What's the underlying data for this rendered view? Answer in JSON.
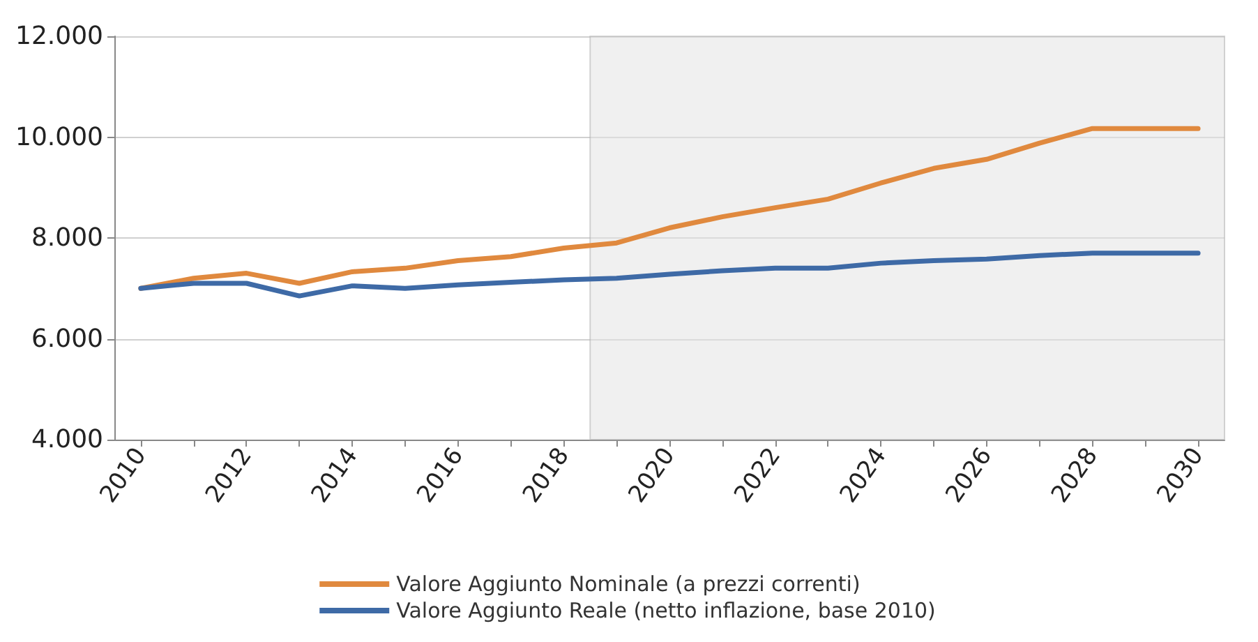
{
  "chart_data": {
    "type": "line",
    "x": [
      2010,
      2011,
      2012,
      2013,
      2014,
      2015,
      2016,
      2017,
      2018,
      2019,
      2020,
      2021,
      2022,
      2023,
      2024,
      2025,
      2026,
      2027,
      2028,
      2029,
      2030
    ],
    "series": [
      {
        "name": "Valore Aggiunto Nominale (a prezzi correnti)",
        "color": "#e0893e",
        "values": [
          7000,
          7200,
          7300,
          7100,
          7330,
          7400,
          7550,
          7630,
          7800,
          7900,
          8200,
          8420,
          8600,
          8770,
          9090,
          9380,
          9560,
          9880,
          10170,
          10170,
          10170
        ]
      },
      {
        "name": "Valore Aggiunto Reale (netto inflazione, base 2010)",
        "color": "#3e6aa6",
        "values": [
          7000,
          7100,
          7100,
          6850,
          7050,
          7000,
          7070,
          7120,
          7170,
          7200,
          7280,
          7350,
          7400,
          7400,
          7500,
          7550,
          7580,
          7650,
          7700,
          7700,
          7700
        ]
      }
    ],
    "xlim": [
      2009.5,
      2030.5
    ],
    "xticks": [
      2010,
      {
        "value": 2011,
        "label": null
      },
      2012,
      {
        "value": 2013,
        "label": null
      },
      2014,
      {
        "value": 2015,
        "label": null
      },
      2016,
      {
        "value": 2017,
        "label": null
      },
      2018,
      {
        "value": 2019,
        "label": null
      },
      2020,
      {
        "value": 2021,
        "label": null
      },
      2022,
      {
        "value": 2023,
        "label": null
      },
      2024,
      {
        "value": 2025,
        "label": null
      },
      2026,
      {
        "value": 2027,
        "label": null
      },
      2028,
      {
        "value": 2029,
        "label": null
      },
      2030
    ],
    "ylim": [
      4000,
      12000
    ],
    "yticks": [
      {
        "value": 4000,
        "label": "4.000"
      },
      {
        "value": 6000,
        "label": "6.000"
      },
      {
        "value": 8000,
        "label": "8.000"
      },
      {
        "value": 10000,
        "label": "10.000"
      },
      {
        "value": 12000,
        "label": "12.000"
      }
    ],
    "bands": [
      {
        "axis": "x",
        "from": 2018.5,
        "to": 2030.5,
        "color": "#e4e4e4"
      }
    ],
    "grid": "y",
    "legend": "bottom",
    "marker": "none",
    "line_style": "solid"
  }
}
